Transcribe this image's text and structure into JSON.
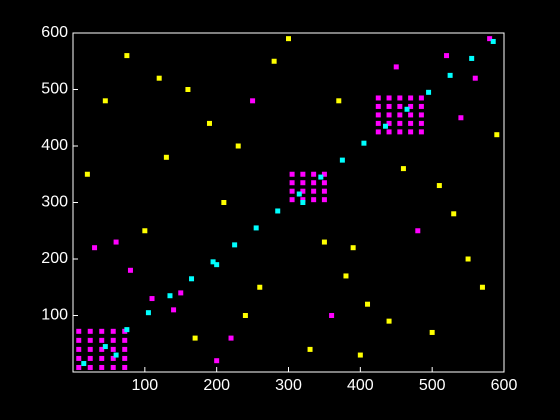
{
  "chart_data": {
    "type": "scatter",
    "background": "#000000",
    "axis_color": "#ffffff",
    "grid": false,
    "xlim": [
      0,
      600
    ],
    "ylim": [
      0,
      600
    ],
    "xticks": [
      100,
      200,
      300,
      400,
      500,
      600
    ],
    "yticks": [
      100,
      200,
      300,
      400,
      500,
      600
    ],
    "series": [
      {
        "color": "#ff00ff",
        "x": [
          8,
          8,
          8,
          8,
          8,
          24,
          24,
          24,
          24,
          24,
          40,
          40,
          40,
          40,
          40,
          56,
          56,
          56,
          56,
          56,
          72,
          72,
          72,
          72,
          72,
          425,
          425,
          425,
          425,
          425,
          440,
          440,
          440,
          440,
          440,
          455,
          455,
          455,
          455,
          455,
          470,
          470,
          470,
          470,
          470,
          485,
          485,
          485,
          485,
          485,
          305,
          305,
          305,
          305,
          320,
          320,
          320,
          320,
          335,
          335,
          335,
          335,
          350,
          350,
          350,
          350,
          110,
          140,
          150,
          200,
          220,
          30,
          60,
          80,
          520,
          560,
          580,
          540,
          450,
          250,
          480,
          360
        ],
        "values": [
          8,
          24,
          40,
          56,
          72,
          8,
          24,
          40,
          56,
          72,
          8,
          24,
          40,
          56,
          72,
          8,
          24,
          40,
          56,
          72,
          8,
          24,
          40,
          56,
          72,
          425,
          440,
          455,
          470,
          485,
          425,
          440,
          455,
          470,
          485,
          425,
          440,
          455,
          470,
          485,
          425,
          440,
          455,
          470,
          485,
          425,
          440,
          455,
          470,
          485,
          305,
          320,
          335,
          350,
          305,
          320,
          335,
          350,
          305,
          320,
          335,
          350,
          305,
          320,
          335,
          350,
          130,
          110,
          140,
          20,
          60,
          220,
          230,
          180,
          560,
          520,
          590,
          450,
          540,
          480,
          250,
          100
        ]
      },
      {
        "color": "#ffff00",
        "x": [
          100,
          130,
          170,
          210,
          260,
          280,
          330,
          370,
          390,
          410,
          440,
          510,
          550,
          590,
          20,
          45,
          75,
          120,
          190,
          240,
          300,
          350,
          400,
          460,
          530,
          570,
          160,
          230,
          380,
          500
        ],
        "values": [
          250,
          380,
          60,
          300,
          150,
          550,
          40,
          480,
          220,
          120,
          90,
          330,
          200,
          420,
          350,
          480,
          560,
          520,
          440,
          100,
          590,
          230,
          30,
          360,
          280,
          150,
          500,
          400,
          170,
          70
        ]
      },
      {
        "color": "#00ffff",
        "x": [
          15,
          45,
          75,
          105,
          135,
          165,
          195,
          225,
          255,
          285,
          315,
          345,
          375,
          405,
          435,
          465,
          495,
          525,
          555,
          585,
          200,
          60,
          320
        ],
        "values": [
          15,
          45,
          75,
          105,
          135,
          165,
          195,
          225,
          255,
          285,
          315,
          345,
          375,
          405,
          435,
          465,
          495,
          525,
          555,
          585,
          190,
          30,
          300
        ]
      }
    ]
  }
}
